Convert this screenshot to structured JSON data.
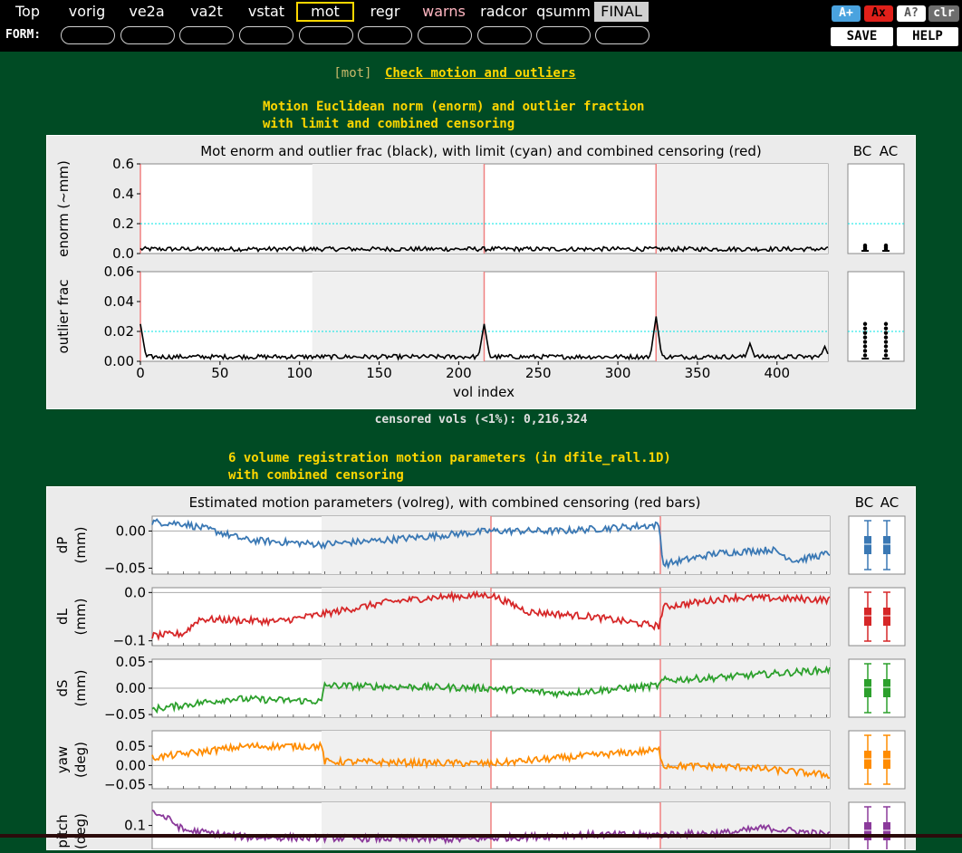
{
  "nav": {
    "items": [
      {
        "label": "Top",
        "style": "normal"
      },
      {
        "label": "vorig",
        "style": "normal"
      },
      {
        "label": "ve2a",
        "style": "normal"
      },
      {
        "label": "va2t",
        "style": "normal"
      },
      {
        "label": "vstat",
        "style": "normal"
      },
      {
        "label": "mot",
        "style": "current"
      },
      {
        "label": "regr",
        "style": "normal"
      },
      {
        "label": "warns",
        "style": "warn"
      },
      {
        "label": "radcor",
        "style": "normal"
      },
      {
        "label": "qsumm",
        "style": "normal"
      },
      {
        "label": "FINAL",
        "style": "final"
      }
    ],
    "form_label": "FORM:",
    "buttons": {
      "a_plus": "A+",
      "ax": "Ax",
      "a_q": "A?",
      "clr": "clr",
      "save": "SAVE",
      "help": "HELP"
    }
  },
  "section": {
    "tag": "[mot]",
    "title": "Check motion and outliers"
  },
  "block1": {
    "heading_line1": "Motion Euclidean norm (enorm) and outlier fraction",
    "heading_line2": "with limit and combined censoring",
    "censored_text": "censored vols (<1%): 0,216,324"
  },
  "block2": {
    "heading_line1": "6 volume registration motion parameters (in dfile_rall.1D)",
    "heading_line2": "with combined censoring"
  },
  "colors": {
    "background": "#004b24",
    "accent": "#ffd700",
    "censor": "#f08080",
    "limit": "#00e5e5",
    "dP": "#3a78b4",
    "dL": "#d62728",
    "dS": "#2ca02c",
    "yaw": "#ff8c00",
    "pitch": "#8b3a9b"
  },
  "chart_data": [
    {
      "type": "line",
      "title": "Mot enorm and outlier frac (black), with limit (cyan) and combined censoring (red)",
      "xlabel": "vol index",
      "x_ticks": [
        0,
        50,
        100,
        150,
        200,
        250,
        300,
        350,
        400
      ],
      "xlim": [
        0,
        432
      ],
      "box_labels": [
        "BC",
        "AC"
      ],
      "shaded_ranges": [
        [
          108,
          216
        ],
        [
          324,
          432
        ]
      ],
      "censor_lines": [
        0,
        216,
        324
      ],
      "panels": [
        {
          "ylabel": "enorm (~mm)",
          "ylim": [
            0,
            0.6
          ],
          "yticks": [
            "0.0",
            "0.2",
            "0.4",
            "0.6"
          ],
          "limit": 0.2,
          "typical": 0.03,
          "peaks": []
        },
        {
          "ylabel": "outlier frac",
          "ylim": [
            0,
            0.06
          ],
          "yticks": [
            "0.00",
            "0.02",
            "0.04",
            "0.06"
          ],
          "limit": 0.02,
          "typical": 0.003,
          "peaks": [
            {
              "x": 0,
              "y": 0.025
            },
            {
              "x": 216,
              "y": 0.025
            },
            {
              "x": 324,
              "y": 0.03
            },
            {
              "x": 383,
              "y": 0.012
            },
            {
              "x": 430,
              "y": 0.01
            }
          ]
        }
      ]
    },
    {
      "type": "line",
      "title": "Estimated motion parameters (volreg), with combined censoring (red bars)",
      "xlim": [
        0,
        432
      ],
      "box_labels": [
        "BC",
        "AC"
      ],
      "shaded_ranges": [
        [
          108,
          216
        ],
        [
          324,
          432
        ]
      ],
      "censor_lines": [
        216,
        324
      ],
      "series": [
        {
          "name": "dP",
          "unit": "(mm)",
          "yticks": [
            {
              "v": 0.0,
              "l": "0.00"
            },
            {
              "v": -0.05,
              "l": "−0.05"
            }
          ],
          "ylim": [
            -0.058,
            0.02
          ],
          "trend": [
            [
              0,
              0.012
            ],
            [
              20,
              0.01
            ],
            [
              40,
              0.0
            ],
            [
              60,
              -0.012
            ],
            [
              108,
              -0.018
            ],
            [
              150,
              -0.012
            ],
            [
              216,
              0.0
            ],
            [
              260,
              0.0
            ],
            [
              323,
              0.008
            ],
            [
              326,
              -0.045
            ],
            [
              360,
              -0.03
            ],
            [
              395,
              -0.025
            ],
            [
              410,
              -0.04
            ],
            [
              432,
              -0.03
            ]
          ]
        },
        {
          "name": "dL",
          "unit": "(mm)",
          "yticks": [
            {
              "v": 0.0,
              "l": "0.0"
            },
            {
              "v": -0.1,
              "l": "−0.1"
            }
          ],
          "ylim": [
            -0.11,
            0.01
          ],
          "trend": [
            [
              0,
              -0.09
            ],
            [
              20,
              -0.085
            ],
            [
              30,
              -0.055
            ],
            [
              80,
              -0.06
            ],
            [
              108,
              -0.045
            ],
            [
              150,
              -0.02
            ],
            [
              180,
              -0.01
            ],
            [
              216,
              -0.005
            ],
            [
              240,
              -0.04
            ],
            [
              280,
              -0.05
            ],
            [
              323,
              -0.07
            ],
            [
              326,
              -0.03
            ],
            [
              370,
              -0.01
            ],
            [
              432,
              -0.015
            ]
          ]
        },
        {
          "name": "dS",
          "unit": "(mm)",
          "yticks": [
            {
              "v": 0.05,
              "l": "0.05"
            },
            {
              "v": 0.0,
              "l": "0.00"
            },
            {
              "v": -0.05,
              "l": "−0.05"
            }
          ],
          "ylim": [
            -0.055,
            0.055
          ],
          "trend": [
            [
              0,
              -0.04
            ],
            [
              50,
              -0.02
            ],
            [
              108,
              -0.025
            ],
            [
              110,
              0.005
            ],
            [
              216,
              0.0
            ],
            [
              260,
              -0.01
            ],
            [
              323,
              0.005
            ],
            [
              326,
              0.015
            ],
            [
              360,
              0.02
            ],
            [
              432,
              0.035
            ]
          ]
        },
        {
          "name": "yaw",
          "unit": "(deg)",
          "yticks": [
            {
              "v": 0.05,
              "l": "0.05"
            },
            {
              "v": 0.0,
              "l": "0.00"
            },
            {
              "v": -0.05,
              "l": "−0.05"
            }
          ],
          "ylim": [
            -0.06,
            0.09
          ],
          "trend": [
            [
              0,
              0.02
            ],
            [
              60,
              0.05
            ],
            [
              108,
              0.05
            ],
            [
              110,
              0.01
            ],
            [
              216,
              0.005
            ],
            [
              323,
              0.04
            ],
            [
              326,
              0.0
            ],
            [
              380,
              -0.005
            ],
            [
              432,
              -0.025
            ]
          ]
        },
        {
          "name": "pitch",
          "unit": "(deg)",
          "yticks": [
            {
              "v": 0.1,
              "l": "0.1"
            }
          ],
          "ylim": [
            -0.05,
            0.2
          ],
          "trend": [
            [
              0,
              0.16
            ],
            [
              10,
              0.13
            ],
            [
              20,
              0.08
            ],
            [
              60,
              0.05
            ],
            [
              200,
              0.04
            ],
            [
              270,
              0.06
            ],
            [
              323,
              0.06
            ],
            [
              370,
              0.07
            ],
            [
              390,
              0.09
            ],
            [
              432,
              0.06
            ]
          ]
        }
      ]
    }
  ]
}
